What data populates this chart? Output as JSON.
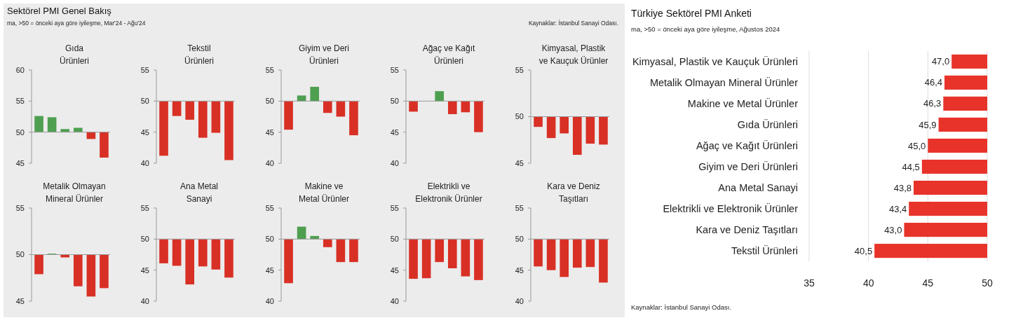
{
  "chart_data": [
    {
      "type": "bar",
      "title": "Gıda Ürünleri",
      "categories": [
        null,
        null,
        null,
        null,
        null,
        null
      ],
      "base": [
        50,
        50,
        50,
        50,
        50,
        50
      ],
      "values": [
        2.6,
        2.4,
        0.5,
        0.7,
        -1.1,
        -4.1
      ],
      "colors": [
        "#4e9f50",
        "#4e9f50",
        "#4e9f50",
        "#4e9f50",
        "#d93025",
        "#d93025"
      ],
      "ylim": [
        45,
        60
      ],
      "yticks": [
        45,
        50,
        55,
        60
      ],
      "annotations": [
        "Sektörel PMI Genel Bakış",
        "ma, >50 = önceki aya göre iyileşme, Mar'24 - Ağu'24",
        "Kaynaklar: İstanbul Sanayi Odası."
      ]
    },
    {
      "type": "bar",
      "title": "Tekstil Ürünleri",
      "categories": [
        null,
        null,
        null,
        null,
        null,
        null
      ],
      "base": [
        50,
        50,
        50,
        50,
        50,
        50
      ],
      "values": [
        -8.8,
        -2.4,
        -3.0,
        -5.9,
        -5.1,
        -9.5
      ],
      "colors": [
        "#d93025",
        "#d93025",
        "#d93025",
        "#d93025",
        "#d93025",
        "#d93025"
      ],
      "ylim": [
        40,
        55
      ],
      "yticks": [
        40,
        45,
        50,
        55
      ]
    },
    {
      "type": "bar",
      "title": "Giyim ve Deri Ürünleri",
      "categories": [
        null,
        null,
        null,
        null,
        null,
        null
      ],
      "base": [
        50,
        50,
        50,
        50,
        50,
        50
      ],
      "values": [
        -4.6,
        0.9,
        2.3,
        -1.9,
        -2.5,
        -5.5
      ],
      "colors": [
        "#d93025",
        "#4e9f50",
        "#4e9f50",
        "#d93025",
        "#d93025",
        "#d93025"
      ],
      "ylim": [
        40,
        55
      ],
      "yticks": [
        40,
        45,
        50,
        55
      ]
    },
    {
      "type": "bar",
      "title": "Ağaç ve Kağıt Ürünleri",
      "categories": [
        null,
        null,
        null,
        null,
        null,
        null
      ],
      "base": [
        50,
        null,
        50,
        50,
        50,
        50
      ],
      "values": [
        -1.7,
        null,
        1.6,
        -2.1,
        -1.8,
        -5.0
      ],
      "colors": [
        "#d93025",
        null,
        "#4e9f50",
        "#d93025",
        "#d93025",
        "#d93025"
      ],
      "ylim": [
        40,
        55
      ],
      "yticks": [
        40,
        45,
        50,
        55
      ]
    },
    {
      "type": "bar",
      "title": "Kimyasal, Plastik ve Kauçuk Ürünler",
      "categories": [
        null,
        null,
        null,
        null,
        null,
        null
      ],
      "base": [
        50,
        50,
        50,
        50,
        50,
        50
      ],
      "values": [
        -1.1,
        -2.3,
        -1.8,
        -4.1,
        -2.9,
        -3.0
      ],
      "colors": [
        "#d93025",
        "#d93025",
        "#d93025",
        "#d93025",
        "#d93025",
        "#d93025"
      ],
      "ylim": [
        45,
        55
      ],
      "yticks": [
        45,
        50,
        55
      ]
    },
    {
      "type": "bar",
      "title": "Metalik Olmayan Mineral Ürünler",
      "categories": [
        null,
        null,
        null,
        null,
        null,
        null
      ],
      "base": [
        50,
        50,
        50,
        50,
        50,
        50
      ],
      "values": [
        -2.1,
        0.1,
        -0.3,
        -3.4,
        -4.5,
        -3.6
      ],
      "colors": [
        "#d93025",
        "#4e9f50",
        "#d93025",
        "#d93025",
        "#d93025",
        "#d93025"
      ],
      "ylim": [
        45,
        55
      ],
      "yticks": [
        45,
        50,
        55
      ]
    },
    {
      "type": "bar",
      "title": "Ana Metal Sanayi",
      "categories": [
        null,
        null,
        null,
        null,
        null,
        null
      ],
      "base": [
        50,
        50,
        50,
        50,
        50,
        50
      ],
      "values": [
        -3.9,
        -4.3,
        -7.3,
        -4.4,
        -4.9,
        -6.2
      ],
      "colors": [
        "#d93025",
        "#d93025",
        "#d93025",
        "#d93025",
        "#d93025",
        "#d93025"
      ],
      "ylim": [
        40,
        55
      ],
      "yticks": [
        40,
        45,
        50,
        55
      ]
    },
    {
      "type": "bar",
      "title": "Makine ve Metal Ürünler",
      "categories": [
        null,
        null,
        null,
        null,
        null,
        null
      ],
      "base": [
        50,
        50,
        50,
        50,
        50,
        50
      ],
      "values": [
        -7.1,
        2.0,
        0.5,
        -1.3,
        -3.7,
        -3.7
      ],
      "colors": [
        "#d93025",
        "#4e9f50",
        "#4e9f50",
        "#d93025",
        "#d93025",
        "#d93025"
      ],
      "ylim": [
        40,
        55
      ],
      "yticks": [
        40,
        45,
        50,
        55
      ]
    },
    {
      "type": "bar",
      "title": "Elektrikli ve Elektronik Ürünler",
      "categories": [
        null,
        null,
        null,
        null,
        null,
        null
      ],
      "base": [
        50,
        50,
        50,
        50,
        50,
        50
      ],
      "values": [
        -6.4,
        -6.3,
        -3.7,
        -4.7,
        -6.0,
        -6.6
      ],
      "colors": [
        "#d93025",
        "#d93025",
        "#d93025",
        "#d93025",
        "#d93025",
        "#d93025"
      ],
      "ylim": [
        40,
        55
      ],
      "yticks": [
        40,
        45,
        50,
        55
      ]
    },
    {
      "type": "bar",
      "title": "Kara ve Deniz Taşıtları",
      "categories": [
        null,
        null,
        null,
        null,
        null,
        null
      ],
      "base": [
        50,
        50,
        50,
        50,
        50,
        50
      ],
      "values": [
        -4.4,
        -5.0,
        -6.1,
        -4.6,
        -4.5,
        -7.0
      ],
      "colors": [
        "#d93025",
        "#d93025",
        "#d93025",
        "#d93025",
        "#d93025",
        "#d93025"
      ],
      "ylim": [
        40,
        55
      ],
      "yticks": [
        40,
        45,
        50,
        55
      ]
    },
    {
      "type": "bar",
      "orientation": "horizontal",
      "title": "Türkiye Sektörel PMI Anketi",
      "subtitle": "ma, >50 = önceki aya göre iyileşme, Ağustos 2024",
      "categories": [
        "Kimyasal, Plastik ve Kauçuk Ürünleri",
        "Metalik Olmayan Mineral Ürünler",
        "Makine ve Metal Ürünler",
        "Gıda Ürünleri",
        "Ağaç ve Kağıt Ürünleri",
        "Giyim ve Deri Ürünleri",
        "Ana Metal Sanayi",
        "Elektrikli ve Elektronik Ürünler",
        "Kara ve Deniz Taşıtları",
        "Tekstil Ürünleri"
      ],
      "base": [
        50,
        50,
        50,
        50,
        50,
        50,
        50,
        50,
        50,
        50
      ],
      "values": [
        -3.0,
        -3.6,
        -3.7,
        -4.1,
        -5.0,
        -5.5,
        -6.2,
        -6.6,
        -7.0,
        -9.5
      ],
      "value_labels": [
        "47,0",
        "46,4",
        "46,3",
        "45,9",
        "45,0",
        "44,5",
        "43,8",
        "43,4",
        "43,0",
        "40,5"
      ],
      "color": "#e8332a",
      "xlim": [
        35,
        50
      ],
      "xticks": [
        35,
        40,
        45,
        50
      ],
      "grid": "x",
      "annotations": [
        "Kaynaklar: İstanbul Sanayi Odası."
      ]
    }
  ]
}
